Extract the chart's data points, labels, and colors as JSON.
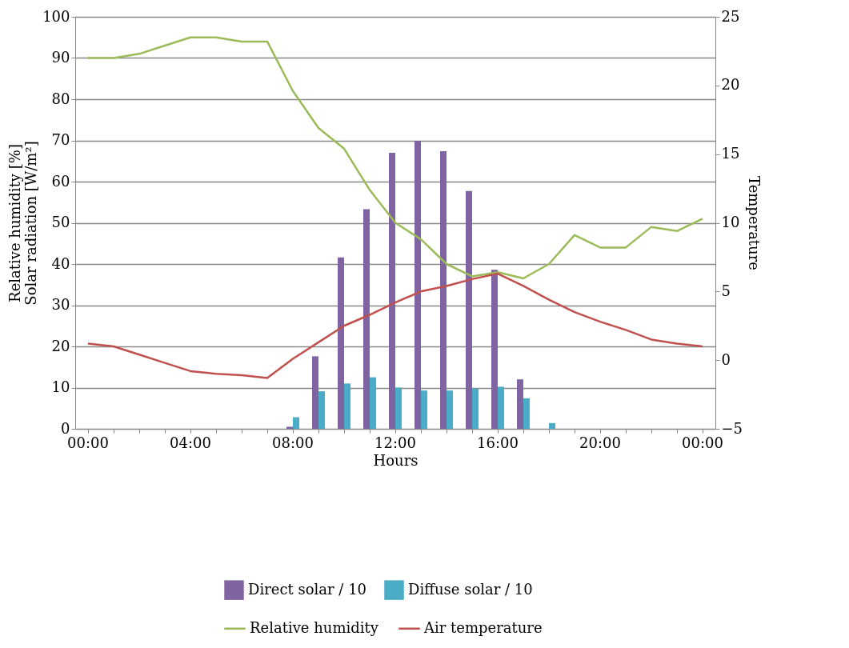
{
  "chart_data": {
    "type": "bar",
    "xlabel": "Hours",
    "ylabel": "Relative humidity [%]\nSolar radiation [W/m²]",
    "y2label": "Temperature",
    "categories": [
      "00:00",
      null,
      null,
      null,
      "04:00",
      null,
      null,
      null,
      "08:00",
      null,
      null,
      null,
      "12:00",
      null,
      null,
      null,
      "16:00",
      null,
      null,
      null,
      "20:00",
      null,
      null,
      null,
      "00:00"
    ],
    "ylim": [
      0,
      100
    ],
    "yticks": [
      0,
      10,
      20,
      30,
      40,
      50,
      60,
      70,
      80,
      90,
      100
    ],
    "y2lim": [
      -5,
      25
    ],
    "y2ticks": [
      -5,
      0,
      5,
      10,
      15,
      20,
      25
    ],
    "grid": "y",
    "legend": "bottom",
    "series": [
      {
        "name": "Direct solar / 10",
        "color": "#8064a2",
        "values": [
          null,
          null,
          null,
          null,
          null,
          null,
          null,
          null,
          0.5,
          17.6,
          41.6,
          53.3,
          67,
          69.9,
          67.4,
          57.7,
          38.6,
          12,
          null,
          null,
          null,
          null,
          null,
          null,
          null
        ]
      },
      {
        "name": "Diffuse solar / 10",
        "color": "#4bacc6",
        "values": [
          null,
          null,
          null,
          null,
          null,
          null,
          null,
          null,
          2.8,
          9.1,
          11,
          12.5,
          10,
          9.3,
          9.3,
          9.8,
          10.2,
          7.4,
          1.4,
          null,
          null,
          null,
          null,
          null,
          null
        ]
      },
      {
        "name": "Relative humidity",
        "type": "line",
        "color": "#9bbb59",
        "values": [
          90,
          90,
          91,
          93,
          95,
          95,
          94,
          94,
          82,
          73,
          68,
          58,
          50,
          46,
          40,
          37,
          38,
          36.5,
          40,
          47,
          44,
          44,
          49,
          48,
          51
        ]
      },
      {
        "name": "Air temperature",
        "type": "line",
        "axis": "y2",
        "color": "#c0504d",
        "values": [
          1.2,
          1.0,
          0.4,
          -0.2,
          -0.8,
          -1.0,
          -1.1,
          -1.3,
          0.1,
          1.3,
          2.5,
          3.3,
          4.2,
          5.0,
          5.4,
          5.9,
          6.3,
          5.4,
          4.4,
          3.5,
          2.8,
          2.2,
          1.5,
          1.2,
          1.0
        ]
      }
    ]
  }
}
